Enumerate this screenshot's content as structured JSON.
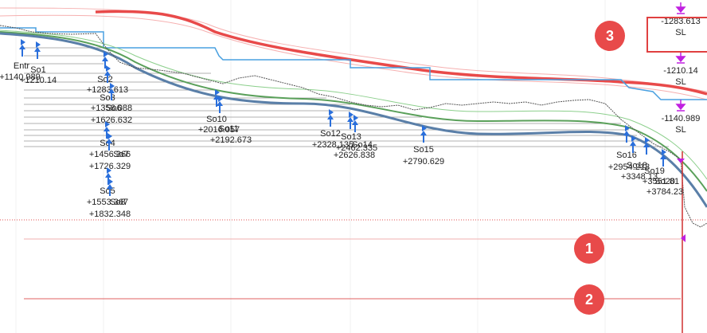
{
  "orders": [
    {
      "name": "Entr",
      "value": "+1140.989"
    },
    {
      "name": "So1",
      "value": "+1210.14"
    },
    {
      "name": "So2",
      "value": "+1283.613"
    },
    {
      "name": "So3",
      "value": "+1356.088"
    },
    {
      "name": "So6",
      "value": "+1626.632"
    },
    {
      "name": "So4",
      "value": "+1456.366"
    },
    {
      "name": "So7",
      "value": "+1726.329"
    },
    {
      "name": "So5",
      "value": "+1553.367"
    },
    {
      "name": "So8",
      "value": "+1832.348"
    },
    {
      "name": "So10",
      "value": "+2016.057"
    },
    {
      "name": "So11",
      "value": "+2192.673"
    },
    {
      "name": "So12",
      "value": "+2328.135"
    },
    {
      "name": "So13",
      "value": "+2462.335"
    },
    {
      "name": "So14",
      "value": "+2626.838"
    },
    {
      "name": "So15",
      "value": "+2790.629"
    },
    {
      "name": "So16",
      "value": "+2954.213"
    },
    {
      "name": "So18",
      "value": "+3348.13"
    },
    {
      "name": "So19",
      "value": "+3551.81"
    },
    {
      "name": "So20",
      "value": "+3784.23"
    }
  ],
  "stop_losses": [
    {
      "value": "-1283.613",
      "label": "SL"
    },
    {
      "value": "-1210.14",
      "label": "SL"
    },
    {
      "value": "-1140.989",
      "label": "SL"
    }
  ],
  "badges": [
    "1",
    "2",
    "3"
  ]
}
